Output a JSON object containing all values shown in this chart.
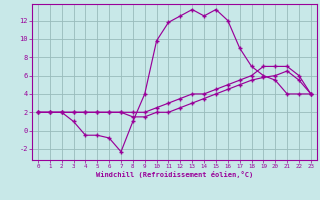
{
  "xlabel": "Windchill (Refroidissement éolien,°C)",
  "bg_color": "#c8e8e8",
  "line_color": "#990099",
  "grid_color": "#99bbbb",
  "xlim_min": -0.5,
  "xlim_max": 23.5,
  "ylim_min": -3.2,
  "ylim_max": 13.8,
  "xticks": [
    0,
    1,
    2,
    3,
    4,
    5,
    6,
    7,
    8,
    9,
    10,
    11,
    12,
    13,
    14,
    15,
    16,
    17,
    18,
    19,
    20,
    21,
    22,
    23
  ],
  "yticks": [
    -2,
    0,
    2,
    4,
    6,
    8,
    10,
    12
  ],
  "line1_x": [
    0,
    1,
    2,
    3,
    4,
    5,
    6,
    7,
    8,
    9,
    10,
    11,
    12,
    13,
    14,
    15,
    16,
    17,
    18,
    19,
    20,
    21,
    22,
    23
  ],
  "line1_y": [
    2.0,
    2.0,
    2.0,
    2.0,
    2.0,
    2.0,
    2.0,
    2.0,
    2.0,
    2.0,
    2.5,
    3.0,
    3.5,
    4.0,
    4.0,
    4.5,
    5.0,
    5.5,
    6.0,
    7.0,
    7.0,
    7.0,
    6.0,
    4.0
  ],
  "line2_x": [
    0,
    1,
    2,
    3,
    4,
    5,
    6,
    7,
    8,
    9,
    10,
    11,
    12,
    13,
    14,
    15,
    16,
    17,
    18,
    19,
    20,
    21,
    22,
    23
  ],
  "line2_y": [
    2.0,
    2.0,
    2.0,
    1.0,
    -0.5,
    -0.5,
    -0.8,
    -2.3,
    1.0,
    4.0,
    9.8,
    11.8,
    12.5,
    13.2,
    12.5,
    13.2,
    12.0,
    9.0,
    7.0,
    6.0,
    5.5,
    4.0,
    4.0,
    4.0
  ],
  "line3_x": [
    0,
    1,
    2,
    3,
    4,
    5,
    6,
    7,
    8,
    9,
    10,
    11,
    12,
    13,
    14,
    15,
    16,
    17,
    18,
    19,
    20,
    21,
    22,
    23
  ],
  "line3_y": [
    2.0,
    2.0,
    2.0,
    2.0,
    2.0,
    2.0,
    2.0,
    2.0,
    1.5,
    1.5,
    2.0,
    2.0,
    2.5,
    3.0,
    3.5,
    4.0,
    4.5,
    5.0,
    5.5,
    5.8,
    6.0,
    6.5,
    5.5,
    4.0
  ]
}
